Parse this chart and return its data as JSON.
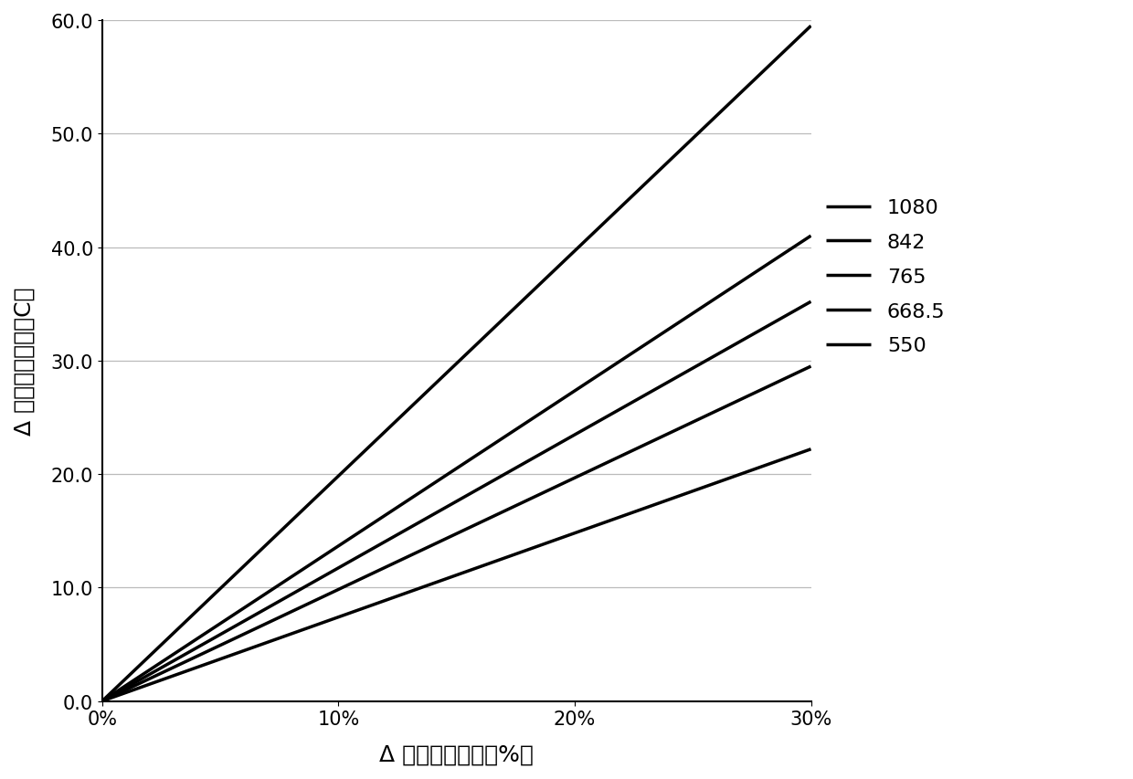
{
  "series": [
    {
      "label": "1080",
      "x": [
        0,
        0.3
      ],
      "y": [
        0,
        59.5
      ]
    },
    {
      "label": "842",
      "x": [
        0,
        0.3
      ],
      "y": [
        0,
        41.0
      ]
    },
    {
      "label": "765",
      "x": [
        0,
        0.3
      ],
      "y": [
        0,
        35.2
      ]
    },
    {
      "label": "668.5",
      "x": [
        0,
        0.3
      ],
      "y": [
        0,
        29.5
      ]
    },
    {
      "label": "550",
      "x": [
        0,
        0.3
      ],
      "y": [
        0,
        22.2
      ]
    }
  ],
  "line_color": "#000000",
  "line_width": 2.5,
  "xlabel": "Δ 探测强度衰减（%）",
  "ylabel": "Δ 温度测量误差（C）",
  "ylim": [
    0,
    60
  ],
  "yticks": [
    0.0,
    10.0,
    20.0,
    30.0,
    40.0,
    50.0,
    60.0
  ],
  "xlim": [
    0,
    0.3
  ],
  "xticks": [
    0,
    0.1,
    0.2,
    0.3
  ],
  "xtick_labels": [
    "0%",
    "10%",
    "20%",
    "30%"
  ],
  "background_color": "#ffffff",
  "grid_color": "#bbbbbb",
  "legend_fontsize": 16,
  "axis_fontsize": 18,
  "tick_fontsize": 15
}
